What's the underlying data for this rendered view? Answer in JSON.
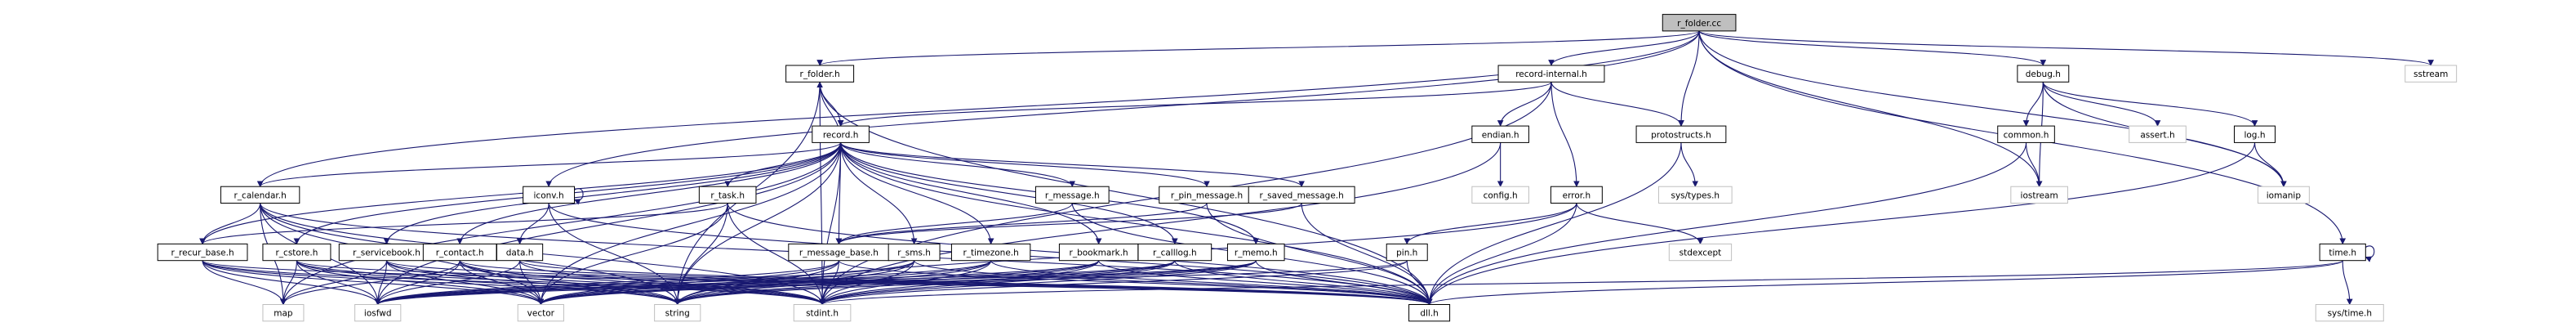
{
  "diagram": {
    "root": "r_folder.cc",
    "nodes": [
      {
        "id": "root",
        "label": "r_folder.cc",
        "kind": "root"
      },
      {
        "id": "rfolderh",
        "label": "r_folder.h",
        "kind": "file"
      },
      {
        "id": "recinternal",
        "label": "record-internal.h",
        "kind": "file"
      },
      {
        "id": "debug",
        "label": "debug.h",
        "kind": "file"
      },
      {
        "id": "sstream",
        "label": "sstream",
        "kind": "ext"
      },
      {
        "id": "record",
        "label": "record.h",
        "kind": "file"
      },
      {
        "id": "endian",
        "label": "endian.h",
        "kind": "file"
      },
      {
        "id": "protostructs",
        "label": "protostructs.h",
        "kind": "file"
      },
      {
        "id": "common",
        "label": "common.h",
        "kind": "file"
      },
      {
        "id": "assert",
        "label": "assert.h",
        "kind": "ext"
      },
      {
        "id": "log",
        "label": "log.h",
        "kind": "file"
      },
      {
        "id": "iconv",
        "label": "iconv.h",
        "kind": "file"
      },
      {
        "id": "rtask",
        "label": "r_task.h",
        "kind": "file"
      },
      {
        "id": "rcalendar",
        "label": "r_calendar.h",
        "kind": "file"
      },
      {
        "id": "rmessage",
        "label": "r_message.h",
        "kind": "file"
      },
      {
        "id": "rpinmessage",
        "label": "r_pin_message.h",
        "kind": "file"
      },
      {
        "id": "rsavedmessage",
        "label": "r_saved_message.h",
        "kind": "file"
      },
      {
        "id": "config",
        "label": "config.h",
        "kind": "ext"
      },
      {
        "id": "systypes",
        "label": "sys/types.h",
        "kind": "ext"
      },
      {
        "id": "error",
        "label": "error.h",
        "kind": "file"
      },
      {
        "id": "iostream",
        "label": "iostream",
        "kind": "ext"
      },
      {
        "id": "iomanip",
        "label": "iomanip",
        "kind": "ext"
      },
      {
        "id": "rrecurbase",
        "label": "r_recur_base.h",
        "kind": "file"
      },
      {
        "id": "rcstore",
        "label": "r_cstore.h",
        "kind": "file"
      },
      {
        "id": "rservicebook",
        "label": "r_servicebook.h",
        "kind": "file"
      },
      {
        "id": "rcontact",
        "label": "r_contact.h",
        "kind": "file"
      },
      {
        "id": "data",
        "label": "data.h",
        "kind": "file"
      },
      {
        "id": "rmessagebase",
        "label": "r_message_base.h",
        "kind": "file"
      },
      {
        "id": "rsms",
        "label": "r_sms.h",
        "kind": "file"
      },
      {
        "id": "rtimezone",
        "label": "r_timezone.h",
        "kind": "file"
      },
      {
        "id": "rbookmark",
        "label": "r_bookmark.h",
        "kind": "file"
      },
      {
        "id": "rcalllog",
        "label": "r_calllog.h",
        "kind": "file"
      },
      {
        "id": "rmemo",
        "label": "r_memo.h",
        "kind": "file"
      },
      {
        "id": "pin",
        "label": "pin.h",
        "kind": "file"
      },
      {
        "id": "stdexcept",
        "label": "stdexcept",
        "kind": "ext"
      },
      {
        "id": "time",
        "label": "time.h",
        "kind": "file"
      },
      {
        "id": "map",
        "label": "map",
        "kind": "ext"
      },
      {
        "id": "iosfwd",
        "label": "iosfwd",
        "kind": "ext"
      },
      {
        "id": "vector",
        "label": "vector",
        "kind": "ext"
      },
      {
        "id": "string",
        "label": "string",
        "kind": "ext"
      },
      {
        "id": "stdint",
        "label": "stdint.h",
        "kind": "ext"
      },
      {
        "id": "dll",
        "label": "dll.h",
        "kind": "file"
      },
      {
        "id": "systime",
        "label": "sys/time.h",
        "kind": "ext"
      }
    ],
    "edges": [
      [
        "root",
        "rfolderh"
      ],
      [
        "root",
        "recinternal"
      ],
      [
        "root",
        "debug"
      ],
      [
        "root",
        "sstream"
      ],
      [
        "root",
        "protostructs"
      ],
      [
        "root",
        "iostream"
      ],
      [
        "root",
        "iomanip"
      ],
      [
        "root",
        "time"
      ],
      [
        "root",
        "iconv"
      ],
      [
        "root",
        "rcalendar"
      ],
      [
        "rfolderh",
        "record"
      ],
      [
        "rfolderh",
        "string"
      ],
      [
        "rfolderh",
        "stdint"
      ],
      [
        "rfolderh",
        "dll"
      ],
      [
        "recinternal",
        "record"
      ],
      [
        "recinternal",
        "endian"
      ],
      [
        "recinternal",
        "protostructs"
      ],
      [
        "recinternal",
        "error"
      ],
      [
        "recinternal",
        "stdint"
      ],
      [
        "debug",
        "common"
      ],
      [
        "debug",
        "assert"
      ],
      [
        "debug",
        "log"
      ],
      [
        "debug",
        "iomanip"
      ],
      [
        "debug",
        "iostream"
      ],
      [
        "common",
        "iostream"
      ],
      [
        "common",
        "dll"
      ],
      [
        "log",
        "iomanip"
      ],
      [
        "log",
        "dll"
      ],
      [
        "endian",
        "config"
      ],
      [
        "endian",
        "stdint"
      ],
      [
        "protostructs",
        "systypes"
      ],
      [
        "protostructs",
        "dll"
      ],
      [
        "error",
        "stdexcept"
      ],
      [
        "error",
        "string"
      ],
      [
        "error",
        "dll"
      ],
      [
        "error",
        "pin"
      ],
      [
        "record",
        "rtask"
      ],
      [
        "record",
        "rcalendar"
      ],
      [
        "record",
        "rmessage"
      ],
      [
        "record",
        "rpinmessage"
      ],
      [
        "record",
        "rsavedmessage"
      ],
      [
        "record",
        "rfolderh"
      ],
      [
        "record",
        "rrecurbase"
      ],
      [
        "record",
        "rcstore"
      ],
      [
        "record",
        "rservicebook"
      ],
      [
        "record",
        "rcontact"
      ],
      [
        "record",
        "rmessagebase"
      ],
      [
        "record",
        "rsms"
      ],
      [
        "record",
        "rtimezone"
      ],
      [
        "record",
        "rbookmark"
      ],
      [
        "record",
        "rcalllog"
      ],
      [
        "record",
        "rmemo"
      ],
      [
        "record",
        "iosfwd"
      ],
      [
        "record",
        "map"
      ],
      [
        "record",
        "vector"
      ],
      [
        "record",
        "string"
      ],
      [
        "record",
        "stdint"
      ],
      [
        "record",
        "dll"
      ],
      [
        "rtask",
        "rrecurbase"
      ],
      [
        "rtask",
        "string"
      ],
      [
        "rtask",
        "vector"
      ],
      [
        "rtask",
        "stdint"
      ],
      [
        "rtask",
        "dll"
      ],
      [
        "rcalendar",
        "rrecurbase"
      ],
      [
        "rcalendar",
        "map"
      ],
      [
        "rcalendar",
        "iosfwd"
      ],
      [
        "rcalendar",
        "string"
      ],
      [
        "rcalendar",
        "vector"
      ],
      [
        "rcalendar",
        "stdint"
      ],
      [
        "rcalendar",
        "dll"
      ],
      [
        "rmessage",
        "rmessagebase"
      ],
      [
        "rpinmessage",
        "rmessagebase"
      ],
      [
        "rsavedmessage",
        "rmessagebase"
      ],
      [
        "rmessage",
        "dll"
      ],
      [
        "rpinmessage",
        "dll"
      ],
      [
        "rsavedmessage",
        "dll"
      ],
      [
        "rrecurbase",
        "map"
      ],
      [
        "rrecurbase",
        "iosfwd"
      ],
      [
        "rrecurbase",
        "string"
      ],
      [
        "rrecurbase",
        "vector"
      ],
      [
        "rrecurbase",
        "stdint"
      ],
      [
        "rrecurbase",
        "dll"
      ],
      [
        "rcstore",
        "map"
      ],
      [
        "rcstore",
        "iosfwd"
      ],
      [
        "rcstore",
        "string"
      ],
      [
        "rcstore",
        "vector"
      ],
      [
        "rcstore",
        "stdint"
      ],
      [
        "rcstore",
        "dll"
      ],
      [
        "rservicebook",
        "map"
      ],
      [
        "rservicebook",
        "iosfwd"
      ],
      [
        "rservicebook",
        "string"
      ],
      [
        "rservicebook",
        "vector"
      ],
      [
        "rservicebook",
        "stdint"
      ],
      [
        "rservicebook",
        "dll"
      ],
      [
        "rcontact",
        "iosfwd"
      ],
      [
        "rcontact",
        "string"
      ],
      [
        "rcontact",
        "vector"
      ],
      [
        "rcontact",
        "map"
      ],
      [
        "rcontact",
        "stdint"
      ],
      [
        "rcontact",
        "dll"
      ],
      [
        "iconv",
        "data"
      ],
      [
        "iconv",
        "iconv"
      ],
      [
        "iconv",
        "string"
      ],
      [
        "iconv",
        "dll"
      ],
      [
        "data",
        "iosfwd"
      ],
      [
        "data",
        "vector"
      ],
      [
        "data",
        "stdint"
      ],
      [
        "data",
        "dll"
      ],
      [
        "rmessagebase",
        "iosfwd"
      ],
      [
        "rmessagebase",
        "string"
      ],
      [
        "rmessagebase",
        "vector"
      ],
      [
        "rmessagebase",
        "stdint"
      ],
      [
        "rmessagebase",
        "dll"
      ],
      [
        "rsms",
        "iosfwd"
      ],
      [
        "rsms",
        "string"
      ],
      [
        "rsms",
        "vector"
      ],
      [
        "rsms",
        "stdint"
      ],
      [
        "rsms",
        "dll"
      ],
      [
        "rtimezone",
        "iosfwd"
      ],
      [
        "rtimezone",
        "string"
      ],
      [
        "rtimezone",
        "vector"
      ],
      [
        "rtimezone",
        "stdint"
      ],
      [
        "rtimezone",
        "dll"
      ],
      [
        "rbookmark",
        "iosfwd"
      ],
      [
        "rbookmark",
        "string"
      ],
      [
        "rbookmark",
        "vector"
      ],
      [
        "rbookmark",
        "stdint"
      ],
      [
        "rbookmark",
        "dll"
      ],
      [
        "rcalllog",
        "iosfwd"
      ],
      [
        "rcalllog",
        "string"
      ],
      [
        "rcalllog",
        "vector"
      ],
      [
        "rcalllog",
        "stdint"
      ],
      [
        "rcalllog",
        "dll"
      ],
      [
        "rmemo",
        "iosfwd"
      ],
      [
        "rmemo",
        "string"
      ],
      [
        "rmemo",
        "vector"
      ],
      [
        "rmemo",
        "stdint"
      ],
      [
        "rmemo",
        "dll"
      ],
      [
        "pin",
        "iosfwd"
      ],
      [
        "pin",
        "stdint"
      ],
      [
        "pin",
        "dll"
      ],
      [
        "time",
        "time"
      ],
      [
        "time",
        "stdint"
      ],
      [
        "time",
        "dll"
      ],
      [
        "time",
        "systime"
      ]
    ]
  }
}
